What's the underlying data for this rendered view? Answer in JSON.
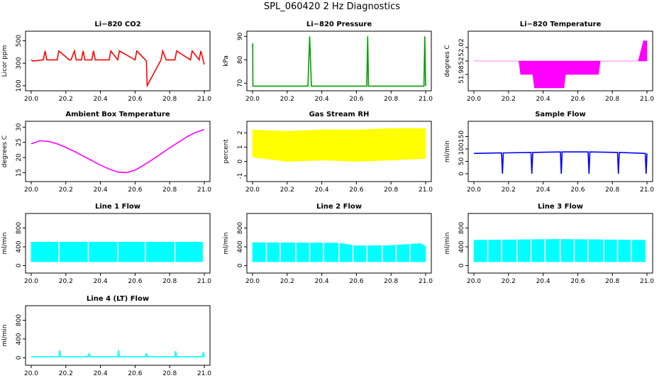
{
  "figure": {
    "title": "SPL_060420  2 Hz Diagnostics"
  },
  "chart_data": [
    {
      "type": "line",
      "title": "Li−820 CO2",
      "ylabel": "Licor ppm",
      "color": "#ff0000",
      "xlim": [
        20.0,
        21.0
      ],
      "ylim": [
        80,
        560
      ],
      "xticks": [
        "20.0",
        "20.2",
        "20.4",
        "20.6",
        "20.8",
        "21.0"
      ],
      "yticks": [
        100,
        300,
        500
      ],
      "series": [
        {
          "x": [
            20.0,
            20.01,
            20.07,
            20.08,
            20.09,
            20.15,
            20.16,
            20.22,
            20.23,
            20.25,
            20.26,
            20.29,
            20.3,
            20.31,
            20.35,
            20.36,
            20.37,
            20.45,
            20.46,
            20.5,
            20.51,
            20.6,
            20.61,
            20.66,
            20.665,
            20.67,
            20.75,
            20.76,
            20.78,
            20.83,
            20.84,
            20.92,
            20.93,
            20.97,
            20.98,
            21.0
          ],
          "y": [
            330,
            320,
            330,
            410,
            330,
            330,
            410,
            330,
            330,
            410,
            330,
            330,
            410,
            330,
            330,
            410,
            330,
            330,
            410,
            330,
            410,
            330,
            410,
            330,
            320,
            100,
            330,
            410,
            330,
            330,
            410,
            330,
            410,
            330,
            410,
            290
          ]
        }
      ]
    },
    {
      "type": "line",
      "title": "Li−820 Pressure",
      "ylabel": "kPa",
      "color": "#00a000",
      "xlim": [
        20.0,
        21.0
      ],
      "ylim": [
        68,
        91
      ],
      "xticks": [
        "20.0",
        "20.2",
        "20.4",
        "20.6",
        "20.8",
        "21.0"
      ],
      "yticks": [
        70,
        80,
        90
      ],
      "series": [
        {
          "x": [
            20.0,
            20.001,
            20.002,
            20.01,
            20.32,
            20.33,
            20.34,
            20.66,
            20.665,
            20.67,
            20.99,
            20.995,
            21.0
          ],
          "y": [
            85,
            87,
            68.8,
            68.8,
            68.8,
            90,
            68.8,
            68.8,
            90,
            68.8,
            68.8,
            90,
            68.8
          ]
        }
      ]
    },
    {
      "type": "area",
      "title": "Li−820 Temperature",
      "ylabel": "degrees C",
      "color": "#ff00ff",
      "xlim": [
        20.0,
        21.0
      ],
      "ylim": [
        51.96,
        52.04
      ],
      "xticks": [
        "20.0",
        "20.2",
        "20.4",
        "20.6",
        "20.8",
        "21.0"
      ],
      "yticks": [
        51.98,
        52.0,
        52.02
      ],
      "series": [
        {
          "x": [
            20.0,
            20.26,
            20.27,
            20.34,
            20.35,
            20.52,
            20.53,
            20.72,
            20.73,
            20.95,
            20.96,
            20.98,
            21.0
          ],
          "y": [
            52.0,
            52.0,
            52.0,
            52.0,
            52.0,
            52.0,
            52.0,
            52.0,
            52.0,
            52.0,
            52.01,
            52.03,
            52.03
          ],
          "low": [
            52.0,
            52.0,
            51.98,
            51.98,
            51.96,
            51.96,
            51.98,
            51.98,
            52.0,
            52.0,
            52.0,
            52.0,
            52.0
          ]
        }
      ]
    },
    {
      "type": "line",
      "title": "Ambient Box Temperature",
      "ylabel": "degrees C",
      "color": "#ff00ff",
      "xlim": [
        20.0,
        21.0
      ],
      "ylim": [
        13,
        31
      ],
      "xticks": [
        "20.0",
        "20.2",
        "20.4",
        "20.6",
        "20.8",
        "21.0"
      ],
      "yticks": [
        15,
        20,
        25,
        30
      ],
      "series": [
        {
          "x": [
            20.0,
            20.05,
            20.1,
            20.15,
            20.2,
            20.25,
            20.3,
            20.35,
            20.4,
            20.45,
            20.5,
            20.55,
            20.6,
            20.65,
            20.7,
            20.75,
            20.8,
            20.85,
            20.9,
            20.95,
            21.0
          ],
          "y": [
            24.5,
            25.5,
            25.3,
            24.5,
            23.3,
            22.0,
            20.5,
            19.0,
            17.5,
            16.2,
            15.2,
            15.0,
            15.8,
            17.5,
            19.3,
            21.2,
            23.2,
            25.0,
            26.8,
            28.3,
            29.2
          ]
        }
      ]
    },
    {
      "type": "area",
      "title": "Gas Stream RH",
      "ylabel": "percent",
      "color": "#ffff00",
      "xlim": [
        20.0,
        21.0
      ],
      "ylim": [
        -1.2,
        2.6
      ],
      "xticks": [
        "20.0",
        "20.2",
        "20.4",
        "20.6",
        "20.8",
        "21.0"
      ],
      "yticks": [
        -1,
        0,
        1,
        2
      ],
      "series": [
        {
          "x": [
            20.0,
            20.2,
            20.4,
            20.6,
            20.8,
            21.0
          ],
          "y": [
            2.2,
            2.1,
            2.2,
            2.2,
            2.3,
            2.3
          ],
          "low": [
            0.3,
            0.0,
            0.1,
            0.0,
            0.1,
            0.2
          ]
        }
      ]
    },
    {
      "type": "line",
      "title": "Sample Flow",
      "ylabel": "ml/min",
      "color": "#0000ff",
      "xlim": [
        20.0,
        21.0
      ],
      "ylim": [
        -20,
        200
      ],
      "xticks": [
        "20.0",
        "20.2",
        "20.4",
        "20.6",
        "20.8",
        "21.0"
      ],
      "yticks": [
        0,
        50,
        100,
        150
      ],
      "series": [
        {
          "x": [
            20.0,
            20.16,
            20.165,
            20.17,
            20.33,
            20.335,
            20.34,
            20.5,
            20.505,
            20.51,
            20.66,
            20.665,
            20.67,
            20.83,
            20.835,
            20.84,
            20.99,
            20.995,
            21.0
          ],
          "y": [
            82,
            84,
            0,
            84,
            86,
            0,
            86,
            88,
            0,
            88,
            88,
            0,
            88,
            86,
            0,
            86,
            82,
            0,
            82
          ]
        }
      ]
    },
    {
      "type": "area",
      "title": "Line 1 Flow",
      "ylabel": "ml/min",
      "color": "#00ffff",
      "xlim": [
        20.0,
        21.0
      ],
      "ylim": [
        -100,
        1050
      ],
      "xticks": [
        "20.0",
        "20.2",
        "20.4",
        "20.6",
        "20.8",
        "21.0"
      ],
      "yticks": [
        0,
        400,
        800
      ],
      "series": [
        {
          "x": [
            20.0,
            20.99
          ],
          "y": [
            500,
            500
          ],
          "low": [
            80,
            80
          ]
        }
      ],
      "gaps": [
        20.16,
        20.33,
        20.5,
        20.66,
        20.83
      ]
    },
    {
      "type": "area",
      "title": "Line 2 Flow",
      "ylabel": "ml/min",
      "color": "#00ffff",
      "xlim": [
        20.0,
        21.0
      ],
      "ylim": [
        -100,
        1050
      ],
      "xticks": [
        "20.0",
        "20.2",
        "20.4",
        "20.6",
        "20.8",
        "21.0"
      ],
      "yticks": [
        0,
        400,
        800
      ],
      "series": [
        {
          "x": [
            20.0,
            20.5,
            20.6,
            20.8,
            20.97,
            21.0
          ],
          "y": [
            490,
            480,
            420,
            430,
            470,
            410
          ],
          "low": [
            80,
            80,
            80,
            80,
            80,
            80
          ]
        }
      ],
      "gaps": [
        20.08,
        20.16,
        20.25,
        20.33,
        20.41,
        20.5,
        20.58,
        20.66,
        20.75,
        20.83,
        20.91
      ]
    },
    {
      "type": "area",
      "title": "Line 3 Flow",
      "ylabel": "ml/min",
      "color": "#00ffff",
      "xlim": [
        20.0,
        21.0
      ],
      "ylim": [
        -100,
        1050
      ],
      "xticks": [
        "20.0",
        "20.2",
        "20.4",
        "20.6",
        "20.8",
        "21.0"
      ],
      "yticks": [
        0,
        400,
        800
      ],
      "series": [
        {
          "x": [
            20.0,
            20.5,
            20.99
          ],
          "y": [
            540,
            560,
            540
          ],
          "low": [
            80,
            80,
            80
          ]
        }
      ],
      "gaps": [
        20.08,
        20.16,
        20.25,
        20.33,
        20.41,
        20.5,
        20.58,
        20.66,
        20.75,
        20.83,
        20.91
      ]
    },
    {
      "type": "line",
      "title": "Line 4 (LT) Flow",
      "ylabel": "ml/min",
      "color": "#00ffff",
      "xlim": [
        20.0,
        21.0
      ],
      "ylim": [
        -100,
        1050
      ],
      "xticks": [
        "20.0",
        "20.2",
        "20.4",
        "20.6",
        "20.8",
        "21.0"
      ],
      "yticks": [
        0,
        400,
        800
      ],
      "series": [
        {
          "x": [
            20.0,
            20.16,
            20.165,
            20.17,
            20.33,
            20.335,
            20.34,
            20.5,
            20.505,
            20.51,
            20.66,
            20.665,
            20.67,
            20.83,
            20.835,
            20.84,
            20.99,
            20.995,
            21.0
          ],
          "y": [
            20,
            20,
            160,
            20,
            20,
            100,
            20,
            20,
            160,
            20,
            20,
            100,
            20,
            20,
            140,
            20,
            20,
            120,
            20
          ]
        }
      ]
    }
  ]
}
